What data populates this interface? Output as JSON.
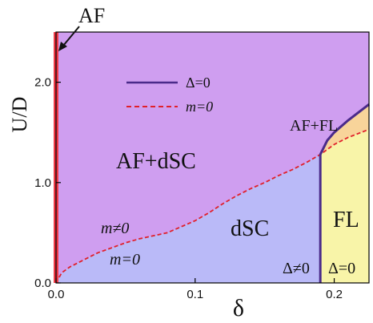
{
  "chart_data": {
    "type": "area",
    "title": "",
    "xlabel": "δ",
    "ylabel": "U/D",
    "xlim": [
      0.0,
      0.225
    ],
    "ylim": [
      0.0,
      2.5
    ],
    "x_ticks": [
      0.0,
      0.1,
      0.2
    ],
    "x_tick_labels": [
      "0.0",
      "0.1",
      "0.2"
    ],
    "y_ticks": [
      0.0,
      1.0,
      2.0
    ],
    "y_tick_labels": [
      "0.0",
      "1.0",
      "2.0"
    ],
    "grid": false,
    "legend": {
      "placement": "top-center",
      "entries": [
        {
          "label": "Δ=0",
          "style": "solid",
          "color": "#4a2a8a"
        },
        {
          "label": "m=0",
          "style": "dashed",
          "color": "#e0202a"
        }
      ]
    },
    "boundaries": [
      {
        "name": "m=0",
        "style": "dashed",
        "color": "#e0202a",
        "x": [
          0.0,
          0.004,
          0.01,
          0.02,
          0.03,
          0.04,
          0.05,
          0.06,
          0.07,
          0.08,
          0.09,
          0.1,
          0.11,
          0.12,
          0.13,
          0.14,
          0.15,
          0.16,
          0.17,
          0.18,
          0.19,
          0.2,
          0.21,
          0.225
        ],
        "y": [
          0.0,
          0.1,
          0.16,
          0.23,
          0.3,
          0.35,
          0.4,
          0.44,
          0.47,
          0.5,
          0.56,
          0.62,
          0.7,
          0.79,
          0.87,
          0.94,
          1.0,
          1.07,
          1.13,
          1.2,
          1.28,
          1.38,
          1.45,
          1.53
        ]
      },
      {
        "name": "Δ=0",
        "style": "solid",
        "color": "#4a2a8a",
        "x": [
          0.19,
          0.19,
          0.195,
          0.2,
          0.21,
          0.225
        ],
        "y": [
          0.0,
          1.28,
          1.42,
          1.5,
          1.62,
          1.78
        ]
      },
      {
        "name": "AF",
        "style": "solid",
        "color": "#ee3a46",
        "x": [
          0.0,
          0.0
        ],
        "y": [
          0.0,
          2.5
        ]
      }
    ],
    "regions": [
      {
        "label": "AF+dSC",
        "color": "#cf9ef0"
      },
      {
        "label": "dSC",
        "color": "#babaf8"
      },
      {
        "label": "FL",
        "color": "#f8f4a8"
      },
      {
        "label": "AF+FL",
        "color": "#f8d49a"
      }
    ],
    "annotations": [
      {
        "text": "AF",
        "x": 0.0,
        "y": 2.5
      },
      {
        "text": "AF+dSC",
        "x": 0.055,
        "y": 1.2
      },
      {
        "text": "dSC",
        "x": 0.155,
        "y": 0.5
      },
      {
        "text": "FL",
        "x": 0.212,
        "y": 0.6
      },
      {
        "text": "AF+FL",
        "x": 0.2,
        "y": 1.86
      },
      {
        "text": "m≠0",
        "x": 0.045,
        "y": 0.52
      },
      {
        "text": "m=0",
        "x": 0.054,
        "y": 0.24
      },
      {
        "text": "Δ≠0",
        "x": 0.18,
        "y": 0.12
      },
      {
        "text": "Δ=0",
        "x": 0.204,
        "y": 0.12
      }
    ]
  }
}
